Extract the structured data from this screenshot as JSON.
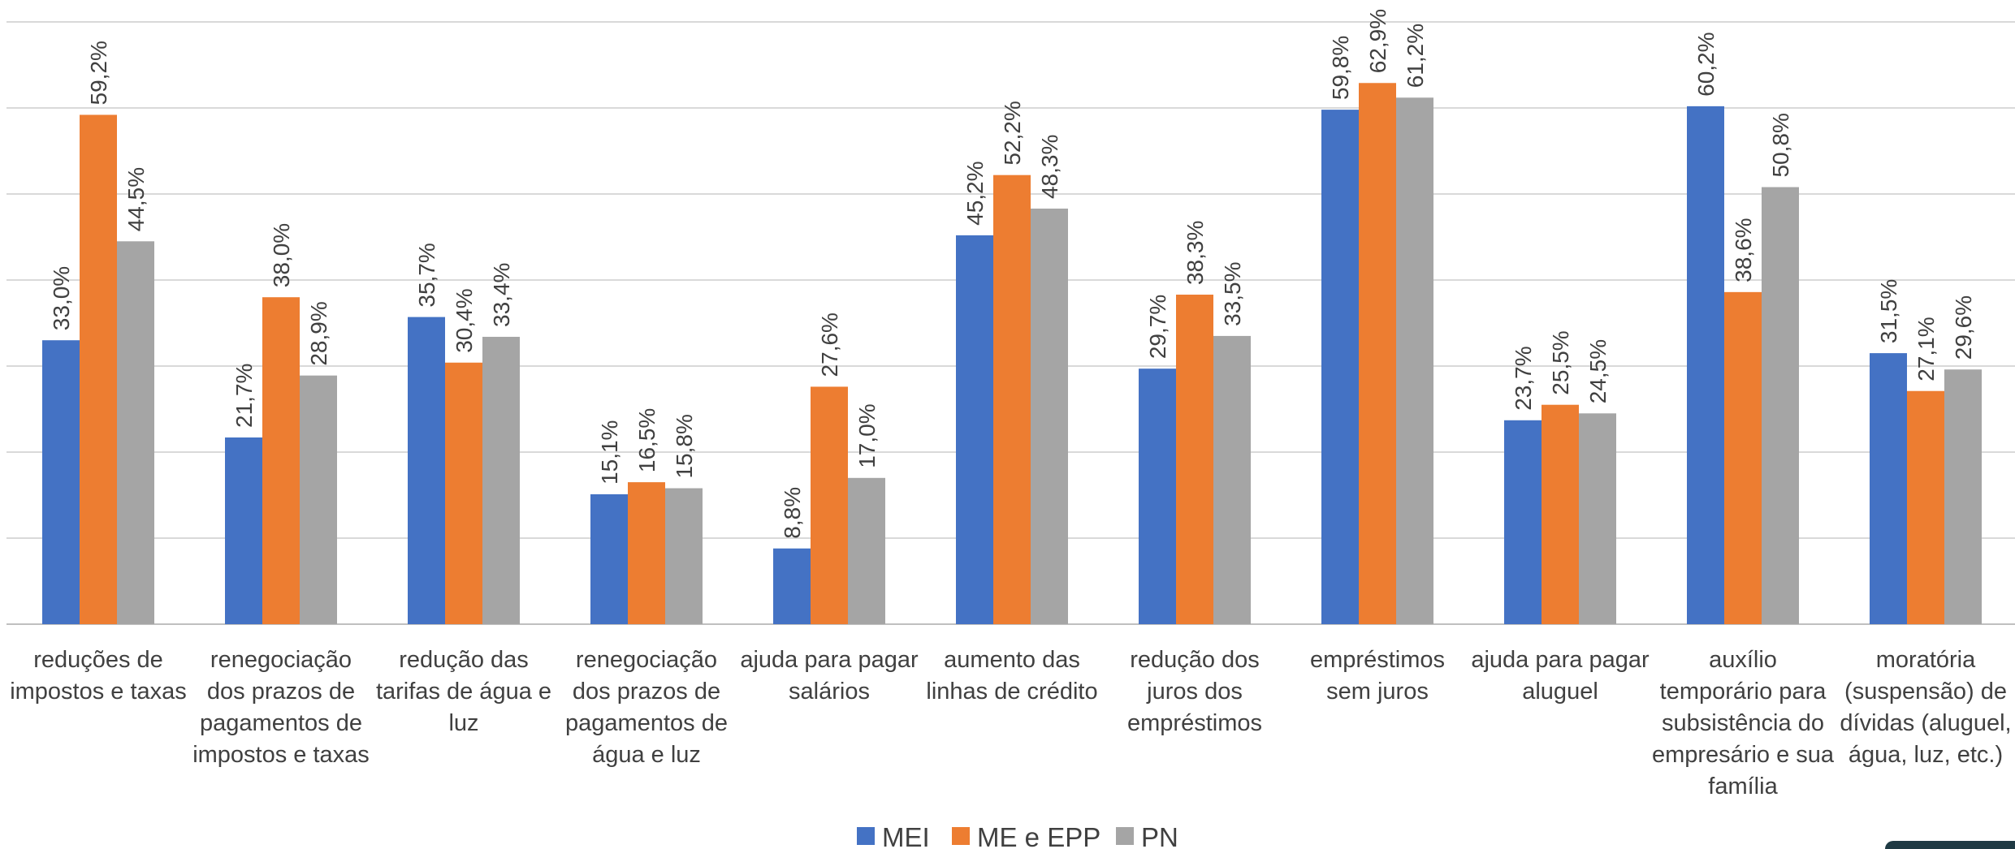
{
  "chart_data": {
    "type": "bar",
    "categories": [
      [
        "reduções de",
        "impostos e taxas"
      ],
      [
        "renegociação",
        "dos prazos de",
        "pagamentos de",
        "impostos e taxas"
      ],
      [
        "redução das",
        "tarifas de água e",
        "luz"
      ],
      [
        "renegociação",
        "dos prazos de",
        "pagamentos de",
        "água e luz"
      ],
      [
        "ajuda para pagar",
        "salários"
      ],
      [
        "aumento das",
        "linhas de crédito"
      ],
      [
        "redução dos",
        "juros dos",
        "empréstimos"
      ],
      [
        "empréstimos",
        "sem juros"
      ],
      [
        "ajuda para pagar",
        "aluguel"
      ],
      [
        "auxílio",
        "temporário para",
        "subsistência do",
        "empresário e sua",
        "família"
      ],
      [
        "moratória",
        "(suspensão) de",
        "dívidas (aluguel,",
        "água, luz, etc.)"
      ]
    ],
    "series": [
      {
        "name": "MEI",
        "color": "#4472c4",
        "values": [
          33.0,
          21.7,
          35.7,
          15.1,
          8.8,
          45.2,
          29.7,
          59.8,
          23.7,
          60.2,
          31.5
        ],
        "labels": [
          "33,0%",
          "21,7%",
          "35,7%",
          "15,1%",
          "8,8%",
          "45,2%",
          "29,7%",
          "59,8%",
          "23,7%",
          "60,2%",
          "31,5%"
        ]
      },
      {
        "name": "ME e EPP",
        "color": "#ed7d31",
        "values": [
          59.2,
          38.0,
          30.4,
          16.5,
          27.6,
          52.2,
          38.3,
          62.9,
          25.5,
          38.6,
          27.1
        ],
        "labels": [
          "59,2%",
          "38,0%",
          "30,4%",
          "16,5%",
          "27,6%",
          "52,2%",
          "38,3%",
          "62,9%",
          "25,5%",
          "38,6%",
          "27,1%"
        ]
      },
      {
        "name": "PN",
        "color": "#a5a5a5",
        "values": [
          44.5,
          28.9,
          33.4,
          15.8,
          17.0,
          48.3,
          33.5,
          61.2,
          24.5,
          50.8,
          29.6
        ],
        "labels": [
          "44,5%",
          "28,9%",
          "33,4%",
          "15,8%",
          "17,0%",
          "48,3%",
          "33,5%",
          "61,2%",
          "24,5%",
          "50,8%",
          "29,6%"
        ]
      }
    ],
    "ylim": [
      0,
      70
    ],
    "grid": true,
    "gridline_color": "#d9d9d9",
    "legend_position": "bottom"
  }
}
